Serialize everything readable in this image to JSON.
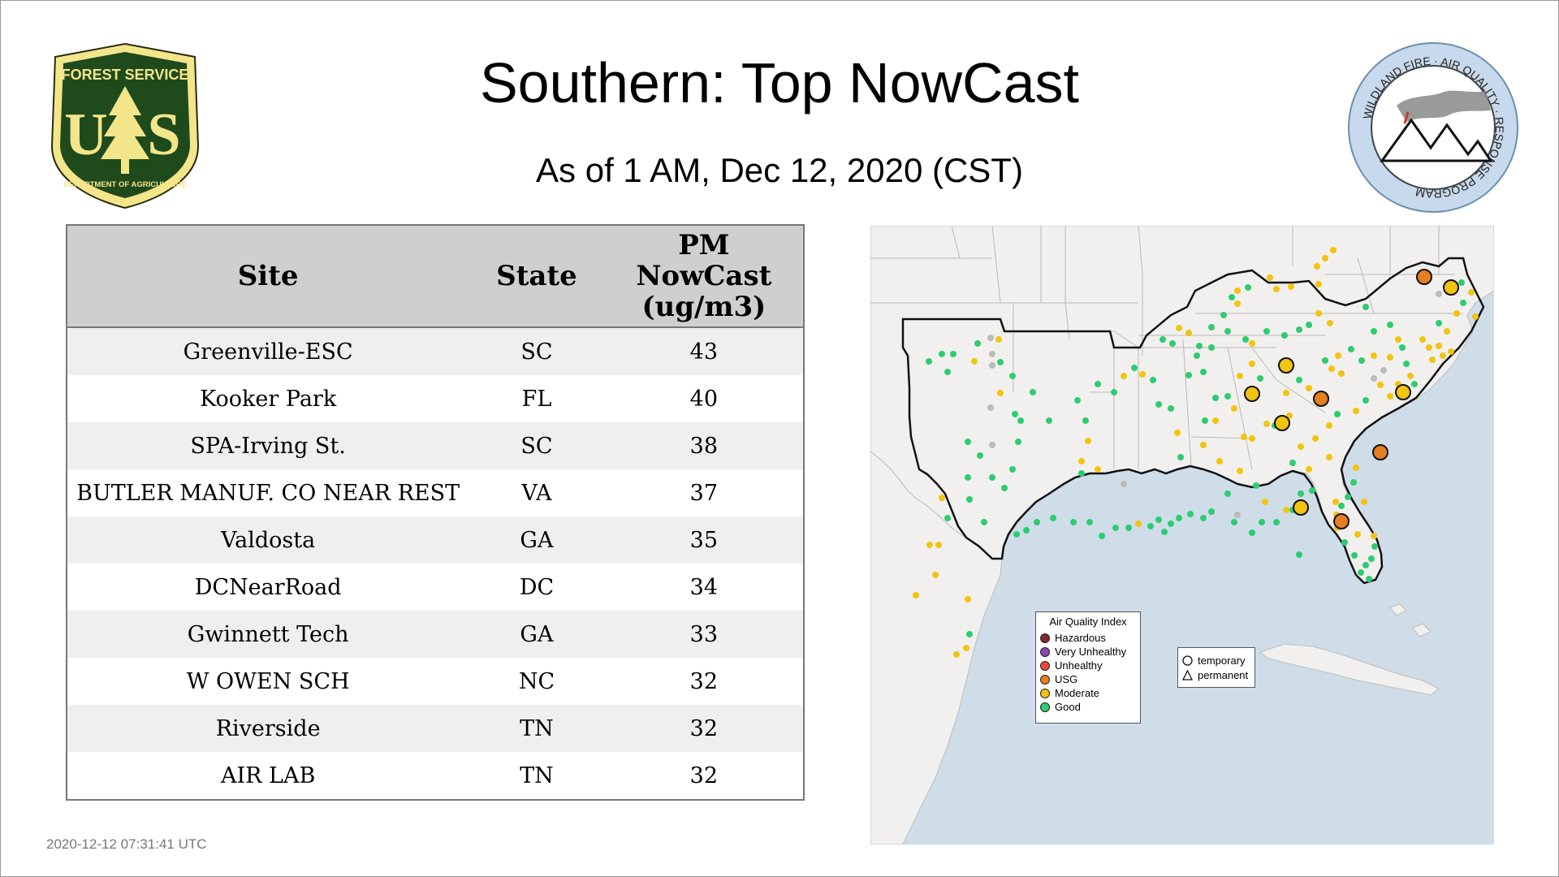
{
  "header": {
    "title": "Southern: Top NowCast",
    "subtitle": "As of  1 AM, Dec 12, 2020 (CST)"
  },
  "logos": {
    "forest_service": {
      "top": "FOREST SERVICE",
      "bottom": "DEPARTMENT OF AGRICULTURE",
      "left_letter": "U",
      "right_letter": "S"
    },
    "wildland": {
      "text": "WILDLAND FIRE · AIR QUALITY · RESPONSE PROGRAM"
    }
  },
  "table": {
    "headers": {
      "site": "Site",
      "state": "State",
      "value_l1": "PM",
      "value_l2": "NowCast",
      "value_l3": "(ug/m3)"
    },
    "rows": [
      {
        "site": "Greenville-ESC",
        "state": "SC",
        "value": "43"
      },
      {
        "site": "Kooker Park",
        "state": "FL",
        "value": "40"
      },
      {
        "site": "SPA-Irving St.",
        "state": "SC",
        "value": "38"
      },
      {
        "site": "BUTLER MANUF. CO NEAR REST",
        "state": "VA",
        "value": "37"
      },
      {
        "site": "Valdosta",
        "state": "GA",
        "value": "35"
      },
      {
        "site": "DCNearRoad",
        "state": "DC",
        "value": "34"
      },
      {
        "site": "Gwinnett Tech",
        "state": "GA",
        "value": "33"
      },
      {
        "site": "W OWEN SCH",
        "state": "NC",
        "value": "32"
      },
      {
        "site": "Riverside",
        "state": "TN",
        "value": "32"
      },
      {
        "site": "AIR LAB",
        "state": "TN",
        "value": "32"
      }
    ]
  },
  "timestamp": "2020-12-12 07:31:41 UTC",
  "legend": {
    "title": "Air Quality Index",
    "items": [
      {
        "label": "Hazardous",
        "color": "#7e2a2a"
      },
      {
        "label": "Very Unhealthy",
        "color": "#8e44ad"
      },
      {
        "label": "Unhealthy",
        "color": "#e74c3c"
      },
      {
        "label": "USG",
        "color": "#e67e22"
      },
      {
        "label": "Moderate",
        "color": "#f1c40f"
      },
      {
        "label": "Good",
        "color": "#2ecc71"
      }
    ]
  },
  "shape_legend": {
    "temporary": "temporary",
    "permanent": "permanent"
  },
  "colors": {
    "water": "#cfdde9",
    "land": "#f2f0ee",
    "good": "#2ecc71",
    "moderate": "#f1c40f",
    "usg": "#e67e22",
    "nodata": "#bbbbbb"
  }
}
